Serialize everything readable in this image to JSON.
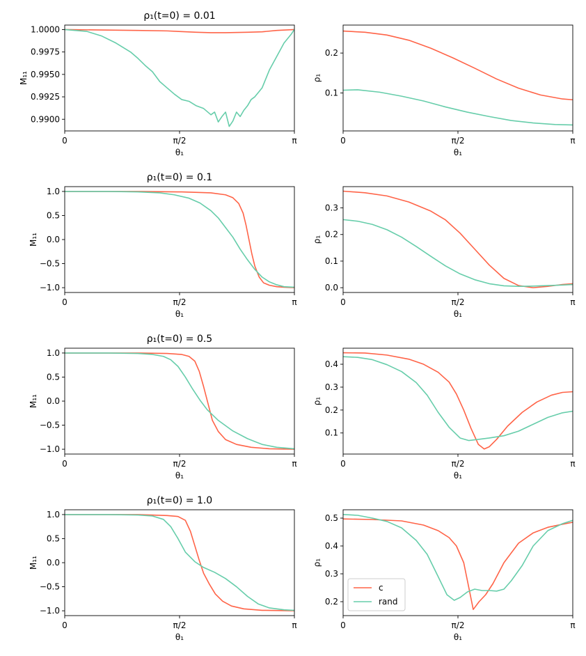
{
  "colors": {
    "c": "#ff6347",
    "rand": "#66cdaa"
  },
  "legend": {
    "placement": "lower-left",
    "entries": [
      "c",
      "rand"
    ]
  },
  "chart_data": [
    {
      "type": "line",
      "title": "ρ₁(t=0) = 0.01",
      "xlabel": "θ₁",
      "ylabel": "M₁₁",
      "xlim": [
        0,
        3.14159
      ],
      "ylim": [
        0.9887,
        1.0005
      ],
      "xticks": [
        {
          "v": 0,
          "label": "0"
        },
        {
          "v": 1.5708,
          "label": "π/2"
        },
        {
          "v": 3.14159,
          "label": "π"
        }
      ],
      "yticks": [
        {
          "v": 1.0,
          "label": "1.0000"
        },
        {
          "v": 0.9975,
          "label": "0.9975"
        },
        {
          "v": 0.995,
          "label": "0.9950"
        },
        {
          "v": 0.9925,
          "label": "0.9925"
        },
        {
          "v": 0.99,
          "label": "0.9900"
        }
      ],
      "series": [
        {
          "name": "c",
          "x": [
            0,
            0.5,
            1.0,
            1.4,
            1.8,
            2.0,
            2.2,
            2.5,
            2.7,
            2.9,
            3.14
          ],
          "y": [
            1.0,
            0.99995,
            0.9999,
            0.99985,
            0.9997,
            0.99965,
            0.99965,
            0.9997,
            0.99975,
            0.9999,
            1.0
          ]
        },
        {
          "name": "rand",
          "x": [
            0,
            0.3,
            0.5,
            0.7,
            0.9,
            1.0,
            1.1,
            1.2,
            1.3,
            1.4,
            1.5,
            1.6,
            1.7,
            1.8,
            1.9,
            2.0,
            2.05,
            2.1,
            2.15,
            2.2,
            2.25,
            2.3,
            2.35,
            2.4,
            2.45,
            2.5,
            2.55,
            2.6,
            2.65,
            2.7,
            2.75,
            2.8,
            2.9,
            3.0,
            3.1,
            3.14
          ],
          "y": [
            1.0,
            0.9998,
            0.9993,
            0.9985,
            0.9975,
            0.9968,
            0.996,
            0.9953,
            0.9942,
            0.9935,
            0.9928,
            0.9922,
            0.992,
            0.9915,
            0.9912,
            0.9905,
            0.9908,
            0.9897,
            0.9903,
            0.9908,
            0.9892,
            0.9898,
            0.9908,
            0.9903,
            0.991,
            0.9915,
            0.9922,
            0.9925,
            0.993,
            0.9935,
            0.9945,
            0.9955,
            0.997,
            0.9985,
            0.9995,
            1.0
          ]
        }
      ]
    },
    {
      "type": "line",
      "title": "",
      "xlabel": "θ₁",
      "ylabel": "ρ₁",
      "xlim": [
        0,
        3.14159
      ],
      "ylim": [
        0.005,
        0.27
      ],
      "xticks": [
        {
          "v": 0,
          "label": "0"
        },
        {
          "v": 1.5708,
          "label": "π/2"
        },
        {
          "v": 3.14159,
          "label": "π"
        }
      ],
      "yticks": [
        {
          "v": 0.1,
          "label": "0.1"
        },
        {
          "v": 0.2,
          "label": "0.2"
        }
      ],
      "series": [
        {
          "name": "c",
          "x": [
            0,
            0.3,
            0.6,
            0.9,
            1.2,
            1.5,
            1.8,
            2.1,
            2.4,
            2.7,
            3.0,
            3.14
          ],
          "y": [
            0.255,
            0.252,
            0.245,
            0.232,
            0.212,
            0.188,
            0.162,
            0.135,
            0.112,
            0.095,
            0.085,
            0.083
          ]
        },
        {
          "name": "rand",
          "x": [
            0,
            0.2,
            0.5,
            0.8,
            1.1,
            1.4,
            1.7,
            2.0,
            2.3,
            2.6,
            2.9,
            3.14
          ],
          "y": [
            0.107,
            0.108,
            0.102,
            0.092,
            0.08,
            0.065,
            0.052,
            0.041,
            0.031,
            0.025,
            0.021,
            0.02
          ]
        }
      ]
    },
    {
      "type": "line",
      "title": "ρ₁(t=0) = 0.1",
      "xlabel": "θ₁",
      "ylabel": "M₁₁",
      "xlim": [
        0,
        3.14159
      ],
      "ylim": [
        -1.1,
        1.1
      ],
      "xticks": [
        {
          "v": 0,
          "label": "0"
        },
        {
          "v": 1.5708,
          "label": "π/2"
        },
        {
          "v": 3.14159,
          "label": "π"
        }
      ],
      "yticks": [
        {
          "v": 1.0,
          "label": "1.0"
        },
        {
          "v": 0.5,
          "label": "0.5"
        },
        {
          "v": 0.0,
          "label": "0.0"
        },
        {
          "v": -0.5,
          "label": "−0.5"
        },
        {
          "v": -1.0,
          "label": "−1.0"
        }
      ],
      "series": [
        {
          "name": "c",
          "x": [
            0,
            1.0,
            1.6,
            2.0,
            2.2,
            2.3,
            2.38,
            2.44,
            2.48,
            2.52,
            2.56,
            2.6,
            2.66,
            2.72,
            2.8,
            2.9,
            3.0,
            3.14
          ],
          "y": [
            1.0,
            1.0,
            0.99,
            0.97,
            0.93,
            0.87,
            0.75,
            0.55,
            0.3,
            0.0,
            -0.3,
            -0.55,
            -0.78,
            -0.9,
            -0.95,
            -0.98,
            -0.99,
            -1.0
          ]
        },
        {
          "name": "rand",
          "x": [
            0,
            0.6,
            1.0,
            1.3,
            1.5,
            1.7,
            1.85,
            2.0,
            2.1,
            2.2,
            2.3,
            2.4,
            2.5,
            2.6,
            2.7,
            2.8,
            2.9,
            3.0,
            3.14
          ],
          "y": [
            1.0,
            1.0,
            0.99,
            0.97,
            0.93,
            0.86,
            0.76,
            0.6,
            0.45,
            0.25,
            0.05,
            -0.2,
            -0.42,
            -0.62,
            -0.78,
            -0.88,
            -0.94,
            -0.98,
            -0.99
          ]
        }
      ]
    },
    {
      "type": "line",
      "title": "",
      "xlabel": "θ₁",
      "ylabel": "ρ₁",
      "xlim": [
        0,
        3.14159
      ],
      "ylim": [
        -0.018,
        0.38
      ],
      "xticks": [
        {
          "v": 0,
          "label": "0"
        },
        {
          "v": 1.5708,
          "label": "π/2"
        },
        {
          "v": 3.14159,
          "label": "π"
        }
      ],
      "yticks": [
        {
          "v": 0.0,
          "label": "0.0"
        },
        {
          "v": 0.1,
          "label": "0.1"
        },
        {
          "v": 0.2,
          "label": "0.2"
        },
        {
          "v": 0.3,
          "label": "0.3"
        }
      ],
      "series": [
        {
          "name": "c",
          "x": [
            0,
            0.3,
            0.6,
            0.9,
            1.2,
            1.4,
            1.6,
            1.8,
            2.0,
            2.2,
            2.4,
            2.6,
            2.8,
            3.0,
            3.14
          ],
          "y": [
            0.363,
            0.357,
            0.345,
            0.322,
            0.288,
            0.255,
            0.205,
            0.145,
            0.085,
            0.035,
            0.008,
            0.0,
            0.005,
            0.012,
            0.015
          ]
        },
        {
          "name": "rand",
          "x": [
            0,
            0.2,
            0.4,
            0.6,
            0.8,
            1.0,
            1.2,
            1.4,
            1.6,
            1.8,
            2.0,
            2.2,
            2.4,
            2.6,
            2.8,
            3.0,
            3.14
          ],
          "y": [
            0.256,
            0.25,
            0.238,
            0.218,
            0.19,
            0.155,
            0.118,
            0.082,
            0.052,
            0.03,
            0.015,
            0.007,
            0.005,
            0.006,
            0.008,
            0.01,
            0.012
          ]
        }
      ]
    },
    {
      "type": "line",
      "title": "ρ₁(t=0) = 0.5",
      "xlabel": "θ₁",
      "ylabel": "M₁₁",
      "xlim": [
        0,
        3.14159
      ],
      "ylim": [
        -1.1,
        1.1
      ],
      "xticks": [
        {
          "v": 0,
          "label": "0"
        },
        {
          "v": 1.5708,
          "label": "π/2"
        },
        {
          "v": 3.14159,
          "label": "π"
        }
      ],
      "yticks": [
        {
          "v": 1.0,
          "label": "1.0"
        },
        {
          "v": 0.5,
          "label": "0.5"
        },
        {
          "v": 0.0,
          "label": "0.0"
        },
        {
          "v": -0.5,
          "label": "−0.5"
        },
        {
          "v": -1.0,
          "label": "−1.0"
        }
      ],
      "series": [
        {
          "name": "c",
          "x": [
            0,
            1.0,
            1.4,
            1.6,
            1.7,
            1.78,
            1.84,
            1.9,
            1.96,
            2.02,
            2.1,
            2.2,
            2.35,
            2.55,
            2.8,
            3.14
          ],
          "y": [
            1.0,
            1.0,
            0.99,
            0.97,
            0.93,
            0.83,
            0.62,
            0.3,
            -0.05,
            -0.4,
            -0.63,
            -0.8,
            -0.9,
            -0.96,
            -0.99,
            -1.0
          ]
        },
        {
          "name": "rand",
          "x": [
            0,
            0.6,
            1.0,
            1.2,
            1.35,
            1.45,
            1.55,
            1.65,
            1.75,
            1.85,
            1.95,
            2.1,
            2.3,
            2.5,
            2.7,
            2.9,
            3.14
          ],
          "y": [
            1.0,
            1.0,
            0.99,
            0.97,
            0.93,
            0.86,
            0.72,
            0.5,
            0.25,
            0.02,
            -0.18,
            -0.4,
            -0.62,
            -0.78,
            -0.9,
            -0.96,
            -0.99
          ]
        }
      ]
    },
    {
      "type": "line",
      "title": "",
      "xlabel": "θ₁",
      "ylabel": "ρ₁",
      "xlim": [
        0,
        3.14159
      ],
      "ylim": [
        0.008,
        0.47
      ],
      "xticks": [
        {
          "v": 0,
          "label": "0"
        },
        {
          "v": 1.5708,
          "label": "π/2"
        },
        {
          "v": 3.14159,
          "label": "π"
        }
      ],
      "yticks": [
        {
          "v": 0.1,
          "label": "0.1"
        },
        {
          "v": 0.2,
          "label": "0.2"
        },
        {
          "v": 0.3,
          "label": "0.3"
        },
        {
          "v": 0.4,
          "label": "0.4"
        }
      ],
      "series": [
        {
          "name": "c",
          "x": [
            0,
            0.3,
            0.6,
            0.9,
            1.1,
            1.3,
            1.45,
            1.55,
            1.65,
            1.75,
            1.85,
            1.93,
            2.0,
            2.1,
            2.25,
            2.45,
            2.65,
            2.85,
            3.0,
            3.14
          ],
          "y": [
            0.45,
            0.449,
            0.44,
            0.422,
            0.4,
            0.365,
            0.322,
            0.27,
            0.2,
            0.12,
            0.05,
            0.03,
            0.04,
            0.072,
            0.13,
            0.19,
            0.235,
            0.265,
            0.277,
            0.28
          ]
        },
        {
          "name": "rand",
          "x": [
            0,
            0.2,
            0.4,
            0.6,
            0.8,
            1.0,
            1.15,
            1.3,
            1.45,
            1.6,
            1.72,
            1.85,
            2.0,
            2.2,
            2.4,
            2.6,
            2.8,
            3.0,
            3.14
          ],
          "y": [
            0.433,
            0.43,
            0.42,
            0.398,
            0.368,
            0.32,
            0.265,
            0.19,
            0.125,
            0.078,
            0.067,
            0.072,
            0.078,
            0.088,
            0.108,
            0.138,
            0.168,
            0.188,
            0.195
          ]
        }
      ]
    },
    {
      "type": "line",
      "title": "ρ₁(t=0) = 1.0",
      "xlabel": "θ₁",
      "ylabel": "M₁₁",
      "xlim": [
        0,
        3.14159
      ],
      "ylim": [
        -1.1,
        1.1
      ],
      "xticks": [
        {
          "v": 0,
          "label": "0"
        },
        {
          "v": 1.5708,
          "label": "π/2"
        },
        {
          "v": 3.14159,
          "label": "π"
        }
      ],
      "yticks": [
        {
          "v": 1.0,
          "label": "1.0"
        },
        {
          "v": 0.5,
          "label": "0.5"
        },
        {
          "v": 0.0,
          "label": "0.0"
        },
        {
          "v": -0.5,
          "label": "−0.5"
        },
        {
          "v": -1.0,
          "label": "−1.0"
        }
      ],
      "series": [
        {
          "name": "c",
          "x": [
            0,
            1.0,
            1.4,
            1.55,
            1.65,
            1.72,
            1.78,
            1.84,
            1.9,
            1.98,
            2.06,
            2.16,
            2.28,
            2.45,
            2.7,
            3.14
          ],
          "y": [
            1.0,
            1.0,
            0.98,
            0.96,
            0.88,
            0.65,
            0.35,
            0.05,
            -0.22,
            -0.45,
            -0.65,
            -0.8,
            -0.9,
            -0.96,
            -0.99,
            -1.0
          ]
        },
        {
          "name": "rand",
          "x": [
            0,
            0.6,
            1.0,
            1.2,
            1.35,
            1.45,
            1.55,
            1.65,
            1.78,
            1.9,
            2.05,
            2.2,
            2.35,
            2.5,
            2.65,
            2.8,
            3.0,
            3.14
          ],
          "y": [
            1.0,
            1.0,
            0.99,
            0.97,
            0.9,
            0.75,
            0.5,
            0.22,
            0.02,
            -0.1,
            -0.2,
            -0.33,
            -0.5,
            -0.7,
            -0.86,
            -0.94,
            -0.98,
            -0.99
          ]
        }
      ]
    },
    {
      "type": "line",
      "title": "",
      "xlabel": "θ₁",
      "ylabel": "ρ₁",
      "xlim": [
        0,
        3.14159
      ],
      "ylim": [
        0.15,
        0.53
      ],
      "xticks": [
        {
          "v": 0,
          "label": "0"
        },
        {
          "v": 1.5708,
          "label": "π/2"
        },
        {
          "v": 3.14159,
          "label": "π"
        }
      ],
      "yticks": [
        {
          "v": 0.2,
          "label": "0.2"
        },
        {
          "v": 0.3,
          "label": "0.3"
        },
        {
          "v": 0.4,
          "label": "0.4"
        },
        {
          "v": 0.5,
          "label": "0.5"
        }
      ],
      "series": [
        {
          "name": "c",
          "x": [
            0,
            0.4,
            0.8,
            1.1,
            1.3,
            1.45,
            1.55,
            1.65,
            1.72,
            1.78,
            1.86,
            1.95,
            2.05,
            2.2,
            2.4,
            2.6,
            2.8,
            3.0,
            3.14
          ],
          "y": [
            0.497,
            0.495,
            0.49,
            0.475,
            0.455,
            0.43,
            0.4,
            0.34,
            0.25,
            0.172,
            0.2,
            0.225,
            0.265,
            0.34,
            0.41,
            0.447,
            0.467,
            0.478,
            0.485
          ]
        },
        {
          "name": "rand",
          "x": [
            0,
            0.2,
            0.4,
            0.6,
            0.8,
            1.0,
            1.15,
            1.3,
            1.42,
            1.52,
            1.6,
            1.7,
            1.8,
            1.9,
            2.0,
            2.1,
            2.2,
            2.3,
            2.45,
            2.6,
            2.8,
            3.0,
            3.14
          ],
          "y": [
            0.513,
            0.51,
            0.5,
            0.488,
            0.465,
            0.42,
            0.37,
            0.29,
            0.225,
            0.205,
            0.215,
            0.235,
            0.245,
            0.24,
            0.24,
            0.238,
            0.245,
            0.275,
            0.33,
            0.4,
            0.455,
            0.48,
            0.492
          ]
        }
      ]
    }
  ]
}
